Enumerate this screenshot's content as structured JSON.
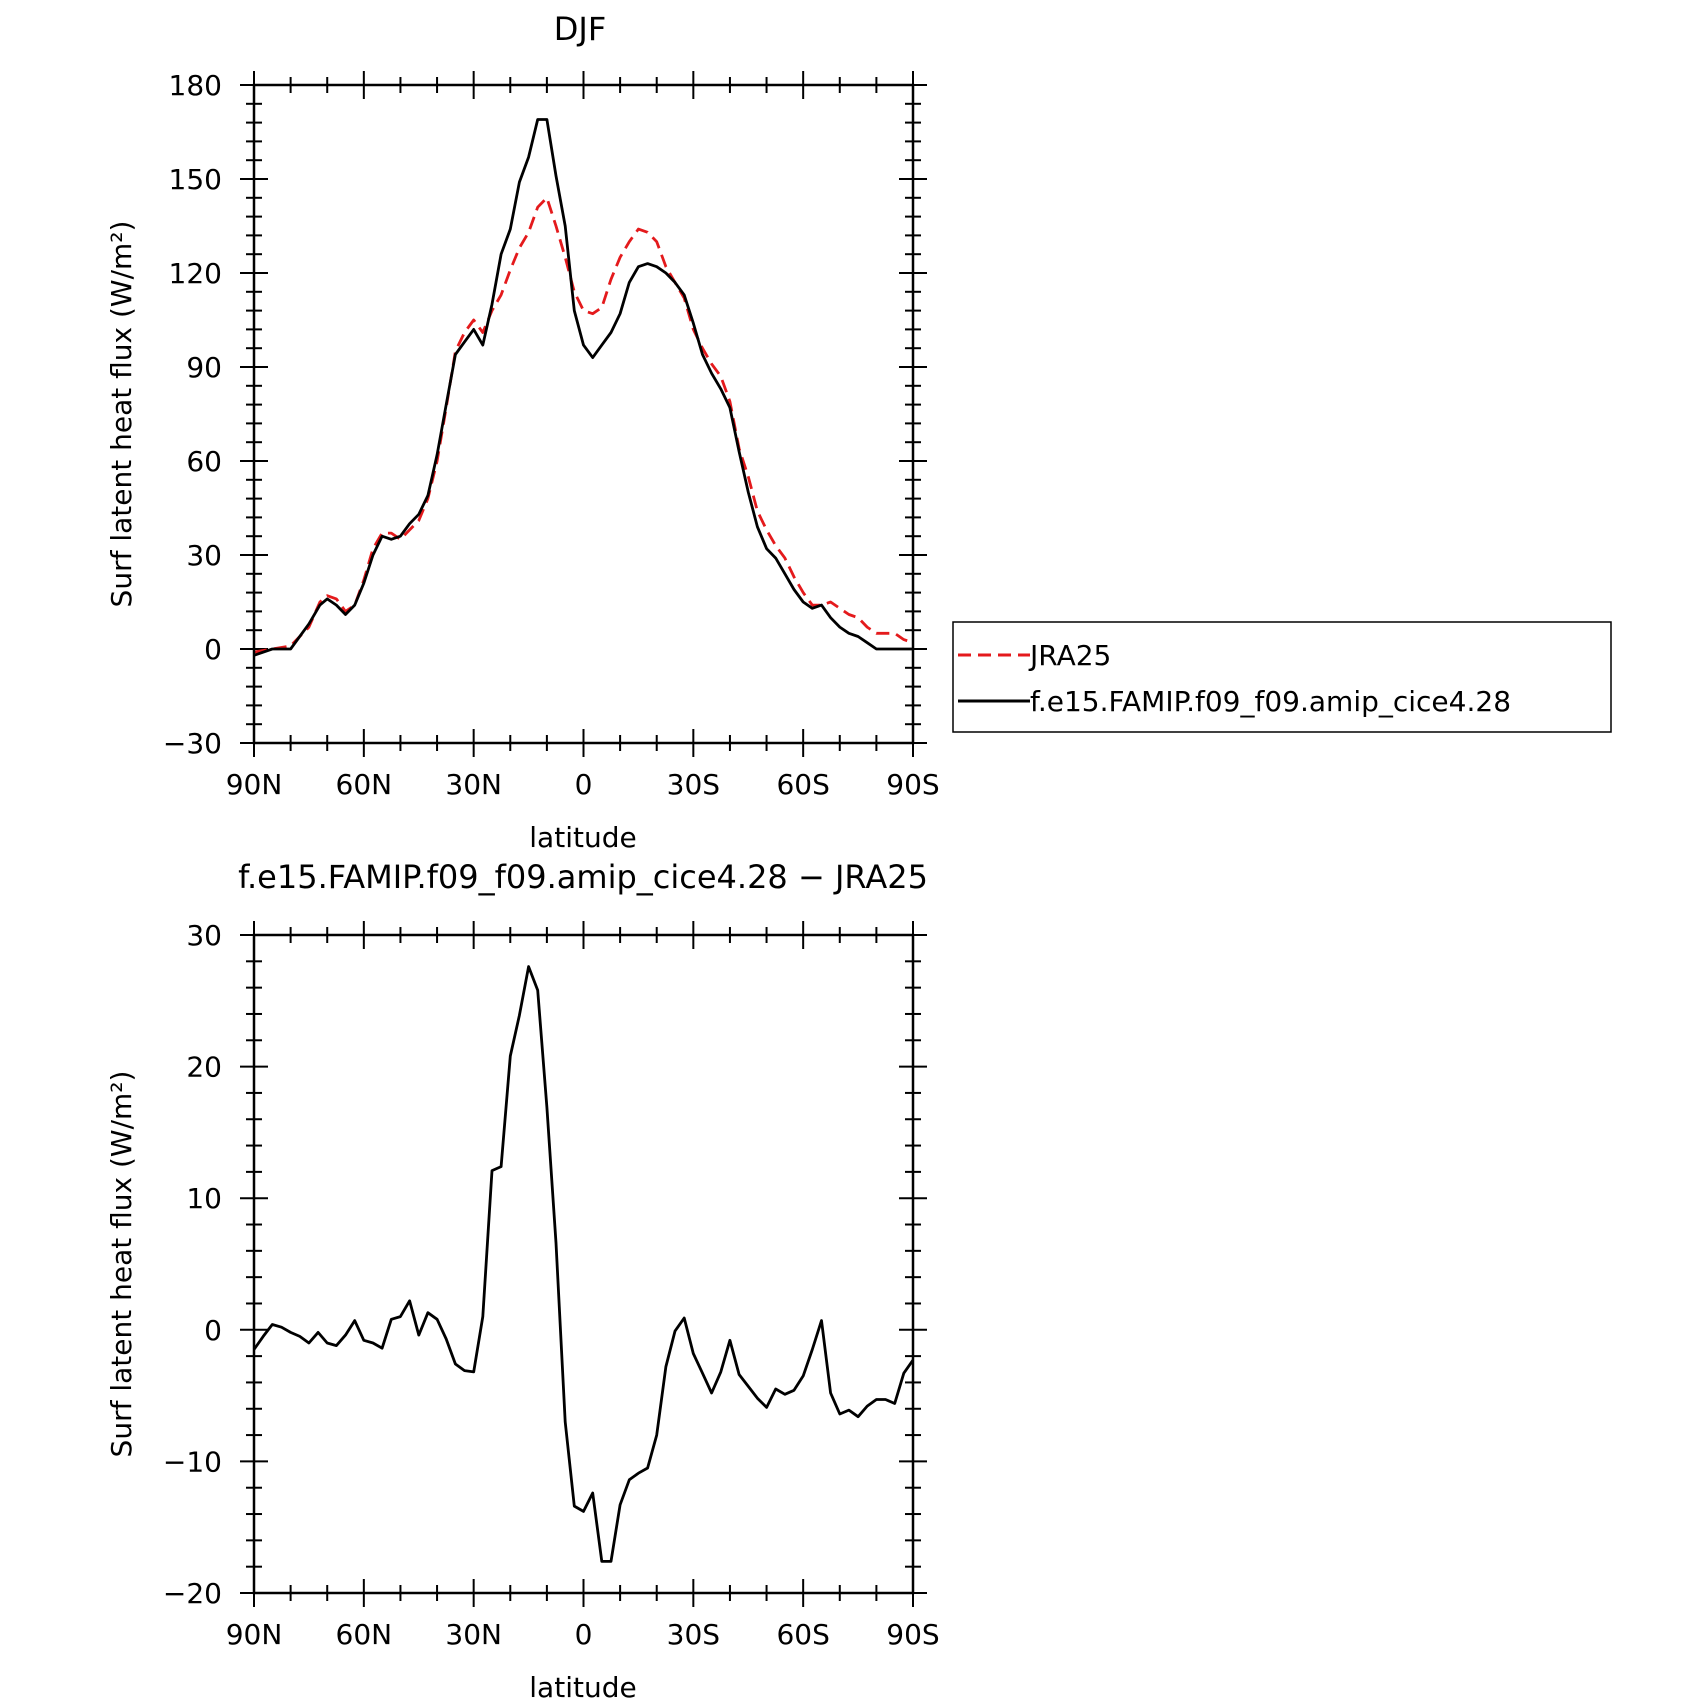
{
  "chart_data": [
    {
      "type": "line",
      "title": "DJF",
      "xlabel": "latitude",
      "ylabel": "Surf latent heat flux (W/m²)",
      "xlim": [
        -90,
        90
      ],
      "ylim": [
        -30,
        180
      ],
      "x_ticks": [
        -90,
        -60,
        -30,
        0,
        30,
        60,
        90
      ],
      "x_tick_labels": [
        "90N",
        "60N",
        "30N",
        "0",
        "30S",
        "60S",
        "90S"
      ],
      "y_ticks": [
        -30,
        0,
        30,
        60,
        90,
        120,
        150,
        180
      ],
      "y_tick_labels": [
        "−30",
        "0",
        "30",
        "60",
        "90",
        "120",
        "150",
        "180"
      ],
      "legend_position": "right",
      "series": [
        {
          "name": "JRA25",
          "style": "dashed",
          "color": "#e41a1c",
          "x": [
            -90,
            -85,
            -80,
            -75,
            -72,
            -70,
            -67.5,
            -65,
            -62.5,
            -60,
            -57.5,
            -55,
            -52.5,
            -50,
            -47.5,
            -45,
            -42.5,
            -40,
            -37.5,
            -35,
            -32.5,
            -30,
            -27.5,
            -25,
            -22.5,
            -20,
            -17.5,
            -15,
            -12.5,
            -10,
            -7.5,
            -5,
            -2.5,
            0,
            2.5,
            5,
            7.5,
            10,
            12.5,
            15,
            17.5,
            20,
            22.5,
            25,
            27.5,
            30,
            32.5,
            35,
            37.5,
            40,
            42.5,
            45,
            47.5,
            50,
            52.5,
            55,
            57.5,
            60,
            62.5,
            65,
            67.5,
            70,
            72.5,
            75,
            77.5,
            80,
            82.5,
            85,
            87.5,
            90
          ],
          "values": [
            -1,
            0,
            1,
            7,
            15,
            17,
            16,
            12,
            14,
            22,
            32,
            37,
            37,
            35,
            38,
            41,
            48,
            60,
            77,
            95,
            101,
            105,
            101,
            108,
            113,
            121,
            128,
            133,
            141,
            144,
            135,
            125,
            114,
            108,
            107,
            109,
            118,
            125,
            130,
            134,
            133,
            130,
            122,
            117,
            112,
            102,
            96,
            91,
            87,
            79,
            64,
            55,
            44,
            38,
            33,
            29,
            23,
            18,
            14,
            14,
            15,
            13,
            11,
            10,
            7,
            5,
            5,
            5,
            3,
            2
          ]
        },
        {
          "name": "f.e15.FAMIP.f09_f09.amip_cice4.28",
          "style": "solid",
          "color": "#000000",
          "x": [
            -90,
            -85,
            -80,
            -75,
            -72,
            -70,
            -67.5,
            -65,
            -62.5,
            -60,
            -57.5,
            -55,
            -52.5,
            -50,
            -47.5,
            -45,
            -42.5,
            -40,
            -37.5,
            -35,
            -32.5,
            -30,
            -27.5,
            -25,
            -22.5,
            -20,
            -17.5,
            -15,
            -12.5,
            -10,
            -7.5,
            -5,
            -2.5,
            0,
            2.5,
            5,
            7.5,
            10,
            12.5,
            15,
            17.5,
            20,
            22.5,
            25,
            27.5,
            30,
            32.5,
            35,
            37.5,
            40,
            42.5,
            45,
            47.5,
            50,
            52.5,
            55,
            57.5,
            60,
            62.5,
            65,
            67.5,
            70,
            72.5,
            75,
            77.5,
            80,
            82.5,
            85,
            87.5,
            90
          ],
          "values": [
            -2,
            0,
            0,
            8,
            14,
            16,
            14,
            11,
            14,
            21,
            30,
            36,
            35,
            36,
            40,
            43,
            49,
            62,
            78,
            94,
            98,
            102,
            97,
            110,
            126,
            134,
            149,
            157,
            169,
            169,
            151,
            135,
            108,
            97,
            93,
            97,
            101,
            107,
            117,
            122,
            123,
            122,
            120,
            117,
            113,
            104,
            94,
            88,
            83,
            77,
            63,
            50,
            39,
            32,
            29,
            24,
            19,
            15,
            13,
            14,
            10,
            7,
            5,
            4,
            2,
            0,
            0,
            0,
            0,
            0
          ]
        }
      ]
    },
    {
      "type": "line",
      "title": "f.e15.FAMIP.f09_f09.amip_cice4.28 − JRA25",
      "xlabel": "latitude",
      "ylabel": "Surf latent heat flux (W/m²)",
      "xlim": [
        -90,
        90
      ],
      "ylim": [
        -20,
        30
      ],
      "x_ticks": [
        -90,
        -60,
        -30,
        0,
        30,
        60,
        90
      ],
      "x_tick_labels": [
        "90N",
        "60N",
        "30N",
        "0",
        "30S",
        "60S",
        "90S"
      ],
      "y_ticks": [
        -20,
        -10,
        0,
        10,
        20,
        30
      ],
      "y_tick_labels": [
        "−20",
        "−10",
        "0",
        "10",
        "20",
        "30"
      ],
      "series": [
        {
          "style": "solid",
          "color": "#000000",
          "x": [
            -90,
            -87.5,
            -85,
            -82.5,
            -80,
            -77.5,
            -75,
            -72.5,
            -70,
            -67.5,
            -65,
            -62.5,
            -60,
            -57.5,
            -55,
            -52.5,
            -50,
            -47.5,
            -45,
            -42.5,
            -40,
            -37.5,
            -35,
            -32.5,
            -30,
            -27.5,
            -25,
            -22.5,
            -20,
            -17.5,
            -15,
            -12.5,
            -10,
            -7.5,
            -5,
            -2.5,
            0,
            2.5,
            5,
            7.5,
            10,
            12.5,
            15,
            17.5,
            20,
            22.5,
            25,
            27.5,
            30,
            32.5,
            35,
            37.5,
            40,
            42.5,
            45,
            47.5,
            50,
            52.5,
            55,
            57.5,
            60,
            62.5,
            65,
            67.5,
            70,
            72.5,
            75,
            77.5,
            80,
            82.5,
            85,
            87.5,
            90
          ],
          "values": [
            -1.5,
            -0.5,
            0.4,
            0.2,
            -0.2,
            -0.5,
            -1,
            -0.2,
            -1,
            -1.2,
            -0.4,
            0.7,
            -0.8,
            -1,
            -1.4,
            0.8,
            1,
            2.2,
            -0.4,
            1.3,
            0.8,
            -0.7,
            -2.6,
            -3.1,
            -3.2,
            1,
            12.1,
            12.4,
            20.8,
            23.9,
            27.6,
            25.8,
            16.9,
            6.6,
            -7,
            -13.4,
            -13.8,
            -12.4,
            -17.6,
            -17.6,
            -13.3,
            -11.4,
            -10.9,
            -10.5,
            -8,
            -2.8,
            -0.1,
            0.9,
            -1.8,
            -3.3,
            -4.8,
            -3.2,
            -0.8,
            -3.4,
            -4.3,
            -5.2,
            -5.9,
            -4.5,
            -4.9,
            -4.6,
            -3.5,
            -1.5,
            0.7,
            -4.8,
            -6.4,
            -6.1,
            -6.6,
            -5.8,
            -5.3,
            -5.3,
            -5.6,
            -3.3,
            -2.3
          ]
        }
      ]
    }
  ]
}
